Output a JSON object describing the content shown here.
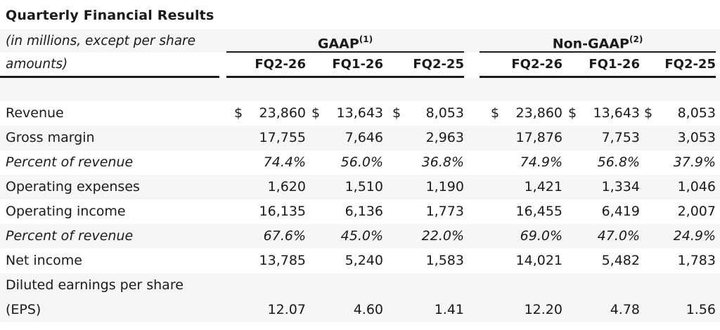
{
  "title": "Quarterly Financial Results",
  "table": {
    "unit_note": "(in millions, except per share amounts)",
    "currency_symbol": "$",
    "groups": [
      {
        "name": "GAAP",
        "superscript": "(1)"
      },
      {
        "name": "Non-GAAP",
        "superscript": "(2)"
      }
    ],
    "column_headers": [
      "FQ2-26",
      "FQ1-26",
      "FQ2-25",
      "FQ2-26",
      "FQ1-26",
      "FQ2-25"
    ],
    "rows": [
      {
        "label": "Revenue",
        "currency": true,
        "values": [
          "23,860",
          "13,643",
          "8,053",
          "23,860",
          "13,643",
          "8,053"
        ]
      },
      {
        "label": "Gross margin",
        "values": [
          "17,755",
          "7,646",
          "2,963",
          "17,876",
          "7,753",
          "3,053"
        ]
      },
      {
        "label": "Percent of revenue",
        "italic": true,
        "values": [
          "74.4%",
          "56.0%",
          "36.8%",
          "74.9%",
          "56.8%",
          "37.9%"
        ]
      },
      {
        "label": "Operating expenses",
        "values": [
          "1,620",
          "1,510",
          "1,190",
          "1,421",
          "1,334",
          "1,046"
        ]
      },
      {
        "label": "Operating income",
        "values": [
          "16,135",
          "6,136",
          "1,773",
          "16,455",
          "6,419",
          "2,007"
        ]
      },
      {
        "label": "Percent of revenue",
        "italic": true,
        "values": [
          "67.6%",
          "45.0%",
          "22.0%",
          "69.0%",
          "47.0%",
          "24.9%"
        ]
      },
      {
        "label": "Net income",
        "values": [
          "13,785",
          "5,240",
          "1,583",
          "14,021",
          "5,482",
          "1,783"
        ]
      },
      {
        "label": "Diluted earnings per share (EPS)",
        "label_lines": [
          "Diluted earnings per share",
          "(EPS)"
        ],
        "values": [
          "12.07",
          "4.60",
          "1.41",
          "12.20",
          "4.78",
          "1.56"
        ]
      }
    ]
  }
}
